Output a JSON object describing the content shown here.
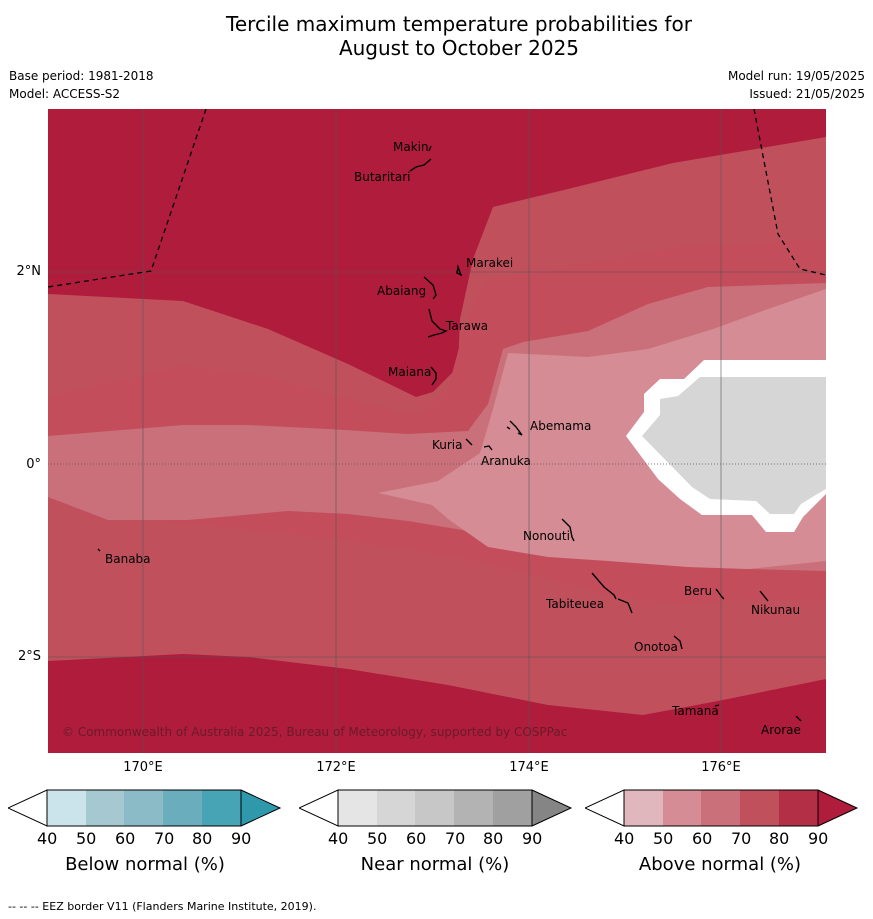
{
  "title_line1": "Tercile maximum temperature probabilities for",
  "title_line2": "August to October 2025",
  "base_period": "Base period: 1981-2018",
  "model": "Model: ACCESS-S2",
  "model_run": "Model run: 19/05/2025",
  "issued": "Issued: 21/05/2025",
  "lat_labels": {
    "n2": "2°N",
    "eq": "0°",
    "s2": "2°S"
  },
  "lon_labels": {
    "e170": "170°E",
    "e172": "172°E",
    "e174": "174°E",
    "e176": "176°E"
  },
  "islands": {
    "makin": "Makin",
    "butaritari": "Butaritari",
    "marakei": "Marakei",
    "abaiang": "Abaiang",
    "tarawa": "Tarawa",
    "maiana": "Maiana",
    "abemama": "Abemama",
    "kuria": "Kuria",
    "aranuka": "Aranuka",
    "banaba": "Banaba",
    "nonouti": "Nonouti",
    "beru": "Beru",
    "nikunau": "Nikunau",
    "tabiteuea": "Tabiteuea",
    "onotoa": "Onotoa",
    "tamana": "Tamana",
    "arorae": "Arorae"
  },
  "copyright": "© Commonwealth of Australia 2025, Bureau of Meteorology, supported by COSPPac",
  "colorbars": [
    {
      "title": "Below normal (%)",
      "ticks": [
        "40",
        "50",
        "60",
        "70",
        "80",
        "90"
      ],
      "colors": [
        "#cbe3eb",
        "#a6c9d1",
        "#8bbbc7",
        "#6aaebe",
        "#47a4b4",
        "#2f98ab"
      ]
    },
    {
      "title": "Near normal (%)",
      "ticks": [
        "40",
        "50",
        "60",
        "70",
        "80",
        "90"
      ],
      "colors": [
        "#e5e5e5",
        "#d6d6d6",
        "#c7c7c7",
        "#b3b3b3",
        "#a0a0a0",
        "#858585"
      ]
    },
    {
      "title": "Above normal (%)",
      "ticks": [
        "40",
        "50",
        "60",
        "70",
        "80",
        "90"
      ],
      "colors": [
        "#e0b7bd",
        "#d58c95",
        "#c9707a",
        "#c0505c",
        "#b32f45",
        "#b01c3c"
      ]
    }
  ],
  "footer": "--  --  -- EEZ border V11 (Flanders Marine Institute, 2019).",
  "colors": {
    "above_90": "#b01c3c",
    "above_80": "#b32f45",
    "above_70": "#c0505c",
    "above_60": "#c9707a",
    "above_50": "#d58c95",
    "near_50": "#d6d6d6"
  }
}
